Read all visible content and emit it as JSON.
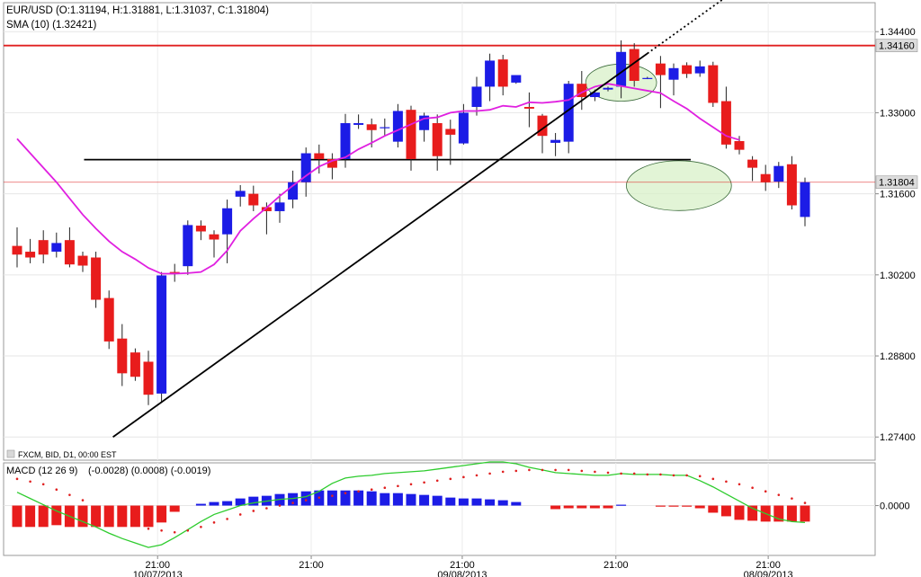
{
  "header": {
    "ohlc_label": "EUR/USD (O:1.31194, H:1.31881, L:1.31037, C:1.31804)",
    "sma_label": "SMA (10) (1.32421)",
    "footer_label": "FXCM, BID, D1, 00:00 EST",
    "macd_label": "MACD (12 26 9)",
    "macd_values": "(-0.0028) (0.0008) (-0.0019)"
  },
  "colors": {
    "bull": "#1c1ce6",
    "bear": "#e81c1c",
    "sma": "#e020e0",
    "macd_line": "#2ecc2e",
    "signal_dots": "#e02020",
    "resistance": "#e02020",
    "trendline": "#000000",
    "ellipse_fill": "#d8f0c8"
  },
  "chart_data": [
    {
      "type": "candlestick",
      "title": "EUR/USD",
      "ylim": [
        1.27,
        1.349
      ],
      "yticks": [
        "1.34400",
        "1.33000",
        "1.31600",
        "1.30200",
        "1.28800",
        "1.27400"
      ],
      "price_tags": [
        "1.34160",
        "1.31804"
      ],
      "resistance_level": 1.3416,
      "support_level": 1.3219,
      "trendline": {
        "start": [
          7.3,
          1.274
        ],
        "end": [
          54.0,
          1.35
        ]
      },
      "ellipses": [
        {
          "cx": 46.0,
          "cy": 1.3352,
          "rx": 2.7,
          "ry": 0.0032
        },
        {
          "cx": 50.4,
          "cy": 1.3174,
          "rx": 4.0,
          "ry": 0.0043
        }
      ],
      "x_labels": [
        {
          "index": 10.7,
          "time": "21:00",
          "date": "10/07/2013"
        },
        {
          "index": 22.4,
          "time": "21:00",
          "date": ""
        },
        {
          "index": 33.9,
          "time": "21:00",
          "date": "09/08/2013"
        },
        {
          "index": 45.6,
          "time": "21:00",
          "date": ""
        },
        {
          "index": 57.2,
          "time": "21:00",
          "date": "08/09/2013"
        }
      ],
      "candles": [
        [
          1.307,
          1.3055,
          1.3102,
          1.3033
        ],
        [
          1.306,
          1.305,
          1.3082,
          1.304
        ],
        [
          1.308,
          1.3055,
          1.3097,
          1.304
        ],
        [
          1.306,
          1.3075,
          1.3093,
          1.305
        ],
        [
          1.308,
          1.3038,
          1.3102,
          1.3033
        ],
        [
          1.3053,
          1.3036,
          1.306,
          1.3025
        ],
        [
          1.305,
          1.2977,
          1.306,
          1.2963
        ],
        [
          1.298,
          1.2905,
          1.2993,
          1.2892
        ],
        [
          1.291,
          1.285,
          1.2935,
          1.2828
        ],
        [
          1.2886,
          1.2844,
          1.2893,
          1.2837
        ],
        [
          1.287,
          1.2813,
          1.2889,
          1.2795
        ],
        [
          1.2815,
          1.3019,
          1.3025,
          1.28
        ],
        [
          1.3025,
          1.3023,
          1.3039,
          1.3008
        ],
        [
          1.3035,
          1.3106,
          1.3114,
          1.302
        ],
        [
          1.3105,
          1.3095,
          1.3114,
          1.308
        ],
        [
          1.309,
          1.3081,
          1.3097,
          1.305
        ],
        [
          1.309,
          1.3135,
          1.315,
          1.304
        ],
        [
          1.3155,
          1.3165,
          1.3175,
          1.3138
        ],
        [
          1.316,
          1.314,
          1.3174,
          1.313
        ],
        [
          1.3137,
          1.313,
          1.3145,
          1.309
        ],
        [
          1.313,
          1.3145,
          1.316,
          1.311
        ],
        [
          1.315,
          1.318,
          1.32,
          1.3135
        ],
        [
          1.318,
          1.323,
          1.324,
          1.3155
        ],
        [
          1.323,
          1.322,
          1.3245,
          1.3195
        ],
        [
          1.322,
          1.3205,
          1.323,
          1.3185
        ],
        [
          1.322,
          1.3282,
          1.3298,
          1.3205
        ],
        [
          1.3279,
          1.3282,
          1.3297,
          1.3272
        ],
        [
          1.328,
          1.327,
          1.329,
          1.324
        ],
        [
          1.3275,
          1.3275,
          1.329,
          1.326
        ],
        [
          1.325,
          1.3303,
          1.3315,
          1.324
        ],
        [
          1.3305,
          1.322,
          1.3312,
          1.32
        ],
        [
          1.327,
          1.3295,
          1.33,
          1.325
        ],
        [
          1.3282,
          1.3225,
          1.3297,
          1.32
        ],
        [
          1.3272,
          1.3262,
          1.3288,
          1.321
        ],
        [
          1.3247,
          1.33,
          1.3315,
          1.3245
        ],
        [
          1.331,
          1.3345,
          1.3362,
          1.3295
        ],
        [
          1.3345,
          1.339,
          1.3402,
          1.332
        ],
        [
          1.3392,
          1.3345,
          1.34,
          1.333
        ],
        [
          1.3352,
          1.3365,
          1.336,
          1.335
        ],
        [
          1.331,
          1.3307,
          1.3335,
          1.3275
        ],
        [
          1.3295,
          1.326,
          1.3298,
          1.323
        ],
        [
          1.3248,
          1.3253,
          1.3265,
          1.3225
        ],
        [
          1.325,
          1.335,
          1.3355,
          1.323
        ],
        [
          1.335,
          1.3327,
          1.3372,
          1.3305
        ],
        [
          1.3327,
          1.3335,
          1.334,
          1.332
        ],
        [
          1.334,
          1.3343,
          1.3345,
          1.3337
        ],
        [
          1.3345,
          1.3405,
          1.3425,
          1.3325
        ],
        [
          1.341,
          1.3355,
          1.342,
          1.3345
        ],
        [
          1.336,
          1.336,
          1.3362,
          1.3358
        ],
        [
          1.3385,
          1.3365,
          1.3398,
          1.3308
        ],
        [
          1.3357,
          1.3377,
          1.3385,
          1.333
        ],
        [
          1.3382,
          1.3367,
          1.3387,
          1.336
        ],
        [
          1.3368,
          1.338,
          1.339,
          1.3362
        ],
        [
          1.3382,
          1.3317,
          1.3388,
          1.331
        ],
        [
          1.332,
          1.3245,
          1.3345,
          1.3238
        ],
        [
          1.3251,
          1.3236,
          1.326,
          1.3228
        ],
        [
          1.3219,
          1.3205,
          1.3225,
          1.3182
        ],
        [
          1.3194,
          1.318,
          1.321,
          1.3165
        ],
        [
          1.3181,
          1.3208,
          1.3215,
          1.317
        ],
        [
          1.3211,
          1.314,
          1.3225,
          1.3133
        ],
        [
          1.312,
          1.318,
          1.3188,
          1.3104
        ]
      ],
      "sma": [
        [
          1.3255,
          1.323,
          1.3205,
          1.318,
          1.3152,
          1.3124,
          1.31,
          1.3078,
          1.306,
          1.3047,
          1.3032,
          1.3022,
          1.3022,
          1.3023,
          1.3025,
          1.3038,
          1.3062,
          1.3096,
          1.3117,
          1.3136,
          1.3156,
          1.3174,
          1.3191,
          1.3207,
          1.3217,
          1.3223,
          1.3237,
          1.3248,
          1.326,
          1.327,
          1.328,
          1.329,
          1.3292,
          1.33,
          1.3303,
          1.3303,
          1.3305,
          1.3312,
          1.331,
          1.3318,
          1.3317,
          1.3319,
          1.3322,
          1.3335,
          1.3345,
          1.335,
          1.3346,
          1.3342,
          1.3338,
          1.3334,
          1.332,
          1.3307,
          1.329,
          1.3275,
          1.326,
          1.3253
        ]
      ]
    },
    {
      "type": "histogram",
      "title": "MACD (12 26 9)",
      "ylim": [
        -0.0056,
        0.0048
      ],
      "yticks": [
        "0.0000"
      ],
      "histogram": [
        -0.0024,
        -0.0024,
        -0.0024,
        -0.0022,
        -0.0024,
        -0.0024,
        -0.0024,
        -0.0024,
        -0.0024,
        -0.0024,
        -0.0024,
        -0.0019,
        -0.0007,
        0,
        0.0002,
        0.0004,
        0.0005,
        0.0008,
        0.001,
        0.0011,
        0.0013,
        0.0014,
        0.0016,
        0.0017,
        0.0017,
        0.0017,
        0.0017,
        0.0016,
        0.0014,
        0.0014,
        0.0013,
        0.0012,
        0.0011,
        0.0009,
        0.0008,
        0.0008,
        0.0007,
        0.0006,
        0.0004,
        0,
        0,
        -0.0004,
        -0.0003,
        -0.0003,
        -0.0003,
        -0.0003,
        0.0001,
        0,
        0,
        -0.0001,
        -0.0001,
        -0.0001,
        -0.0003,
        -0.0008,
        -0.0012,
        -0.0016,
        -0.0017,
        -0.0018,
        -0.0018,
        -0.0018,
        -0.0018
      ],
      "macd_line": [
        0.0015,
        0.0008,
        0.0001,
        -0.0006,
        -0.0012,
        -0.0018,
        -0.0024,
        -0.0031,
        -0.0037,
        -0.0042,
        -0.0047,
        -0.0044,
        -0.0036,
        -0.0027,
        -0.0018,
        -0.001,
        -0.0005,
        0.0,
        0.0003,
        0.0005,
        0.0007,
        0.0008,
        0.001,
        0.0016,
        0.0025,
        0.0031,
        0.0033,
        0.0034,
        0.0036,
        0.0037,
        0.0038,
        0.0039,
        0.0041,
        0.0043,
        0.0045,
        0.0047,
        0.0049,
        0.0049,
        0.0047,
        0.0043,
        0.004,
        0.0037,
        0.0036,
        0.0035,
        0.0034,
        0.0034,
        0.0036,
        0.0035,
        0.0035,
        0.0035,
        0.0034,
        0.0034,
        0.0028,
        0.0021,
        0.0013,
        0.0005,
        -0.0003,
        -0.0009,
        -0.0015,
        -0.0018,
        -0.0019
      ],
      "signal": [
        0.003,
        0.0027,
        0.0024,
        0.0018,
        0.0012,
        0.0006,
        -0.0002,
        -0.001,
        -0.0016,
        -0.0022,
        -0.0026,
        -0.0028,
        -0.003,
        -0.0028,
        -0.0024,
        -0.0019,
        -0.0015,
        -0.001,
        -0.0006,
        -0.0003,
        0.0,
        0.0003,
        0.0006,
        0.0009,
        0.0011,
        0.0014,
        0.0016,
        0.0018,
        0.002,
        0.0022,
        0.0024,
        0.0026,
        0.0028,
        0.003,
        0.0032,
        0.0034,
        0.0036,
        0.0038,
        0.0039,
        0.004,
        0.004,
        0.004,
        0.004,
        0.0039,
        0.0038,
        0.0037,
        0.0036,
        0.0036,
        0.0035,
        0.0035,
        0.0034,
        0.0034,
        0.0033,
        0.003,
        0.0027,
        0.0024,
        0.002,
        0.0016,
        0.0012,
        0.0008,
        0.0003
      ]
    }
  ]
}
